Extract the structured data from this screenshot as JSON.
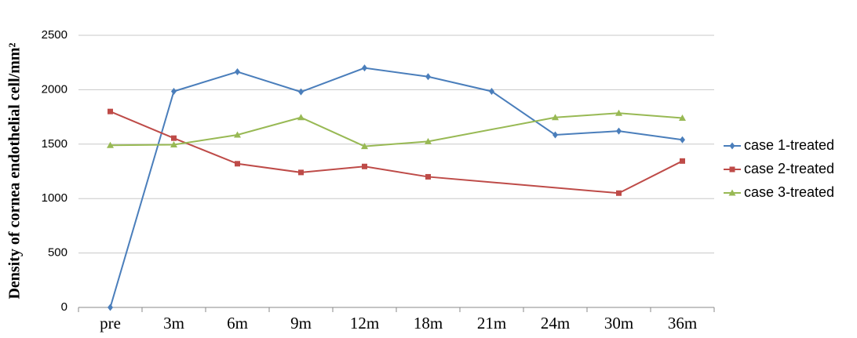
{
  "chart_data": {
    "type": "line",
    "y_label": "Density of cornea endothelial cell/mm²",
    "categories": [
      "pre",
      "3m",
      "6m",
      "9m",
      "12m",
      "18m",
      "21m",
      "24m",
      "30m",
      "36m"
    ],
    "series": [
      {
        "name": "case 1-treated",
        "color": "#4a7ebb",
        "marker": "diamond",
        "values": [
          0,
          1985,
          2165,
          1980,
          2200,
          2120,
          1985,
          1585,
          1620,
          1540
        ]
      },
      {
        "name": "case 2-treated",
        "color": "#be4b48",
        "marker": "square",
        "values": [
          1800,
          1555,
          1320,
          1240,
          1295,
          1200,
          null,
          null,
          1050,
          1345
        ]
      },
      {
        "name": "case 3-treated",
        "color": "#98b954",
        "marker": "triangle",
        "values": [
          1490,
          1495,
          1585,
          1745,
          1480,
          1525,
          null,
          1745,
          1785,
          1740
        ]
      }
    ],
    "ylim": [
      0,
      2500
    ],
    "yticks": [
      0,
      500,
      1000,
      1500,
      2000,
      2500
    ],
    "grid": true,
    "connect_gaps": true,
    "legend": "right"
  }
}
